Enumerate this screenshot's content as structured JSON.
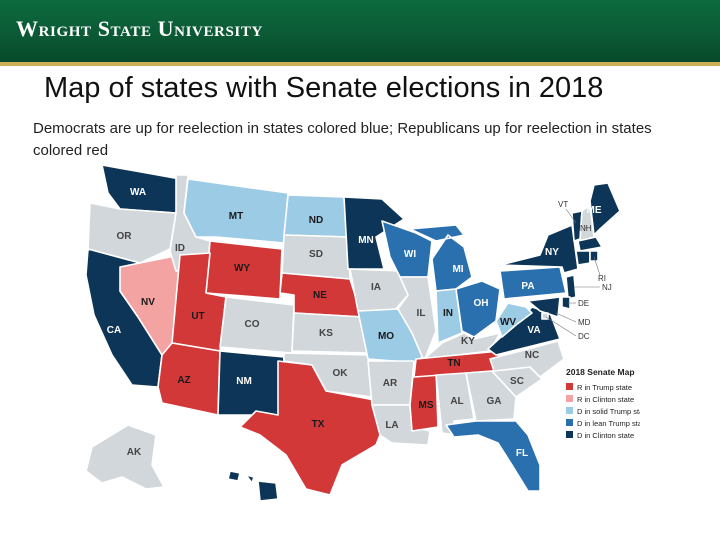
{
  "header": {
    "logo_text": "Wright State University"
  },
  "slide": {
    "title": "Map of states with Senate elections in 2018",
    "subtitle": "Democrats are up for reelection in states colored blue; Republicans up for reelection in states colored red"
  },
  "map": {
    "categories": {
      "none": {
        "color": "#d2d7db",
        "text": "#444444"
      },
      "r_trump": {
        "color": "#d33838",
        "text": "#1a1a1a"
      },
      "r_clinton": {
        "color": "#f4a3a3",
        "text": "#1a1a1a"
      },
      "d_solid": {
        "color": "#9ccbe6",
        "text": "#1a1a1a"
      },
      "d_lean": {
        "color": "#2a6fae",
        "text": "#ffffff"
      },
      "d_clinton": {
        "color": "#0d3557",
        "text": "#ffffff"
      }
    },
    "legend": {
      "title": "2018 Senate Map",
      "items": [
        {
          "cat": "r_trump",
          "label": "R in Trump state"
        },
        {
          "cat": "r_clinton",
          "label": "R in Clinton state"
        },
        {
          "cat": "d_solid",
          "label": "D in solid Trump state"
        },
        {
          "cat": "d_lean",
          "label": "D in lean Trump state"
        },
        {
          "cat": "d_clinton",
          "label": "D in Clinton state"
        }
      ]
    },
    "states": [
      {
        "code": "WA",
        "cat": "d_clinton"
      },
      {
        "code": "OR",
        "cat": "none"
      },
      {
        "code": "CA",
        "cat": "d_clinton"
      },
      {
        "code": "NV",
        "cat": "r_clinton"
      },
      {
        "code": "ID",
        "cat": "none"
      },
      {
        "code": "MT",
        "cat": "d_solid"
      },
      {
        "code": "WY",
        "cat": "r_trump"
      },
      {
        "code": "UT",
        "cat": "r_trump"
      },
      {
        "code": "AZ",
        "cat": "r_trump"
      },
      {
        "code": "CO",
        "cat": "none"
      },
      {
        "code": "NM",
        "cat": "d_clinton"
      },
      {
        "code": "ND",
        "cat": "d_solid"
      },
      {
        "code": "SD",
        "cat": "none"
      },
      {
        "code": "NE",
        "cat": "r_trump"
      },
      {
        "code": "KS",
        "cat": "none"
      },
      {
        "code": "OK",
        "cat": "none"
      },
      {
        "code": "TX",
        "cat": "r_trump"
      },
      {
        "code": "MN",
        "cat": "d_clinton"
      },
      {
        "code": "IA",
        "cat": "none"
      },
      {
        "code": "MO",
        "cat": "d_solid"
      },
      {
        "code": "AR",
        "cat": "none"
      },
      {
        "code": "LA",
        "cat": "none"
      },
      {
        "code": "WI",
        "cat": "d_lean"
      },
      {
        "code": "IL",
        "cat": "none"
      },
      {
        "code": "MS",
        "cat": "r_trump"
      },
      {
        "code": "MI",
        "cat": "d_lean"
      },
      {
        "code": "IN",
        "cat": "d_solid"
      },
      {
        "code": "OH",
        "cat": "d_lean"
      },
      {
        "code": "KY",
        "cat": "none"
      },
      {
        "code": "TN",
        "cat": "r_trump"
      },
      {
        "code": "AL",
        "cat": "none"
      },
      {
        "code": "GA",
        "cat": "none"
      },
      {
        "code": "FL",
        "cat": "d_lean"
      },
      {
        "code": "SC",
        "cat": "none"
      },
      {
        "code": "NC",
        "cat": "none"
      },
      {
        "code": "VA",
        "cat": "d_clinton"
      },
      {
        "code": "WV",
        "cat": "d_solid"
      },
      {
        "code": "PA",
        "cat": "d_lean"
      },
      {
        "code": "NY",
        "cat": "d_clinton"
      },
      {
        "code": "VT",
        "cat": "d_clinton"
      },
      {
        "code": "NH",
        "cat": "none"
      },
      {
        "code": "ME",
        "cat": "d_clinton"
      },
      {
        "code": "MA",
        "cat": "d_clinton"
      },
      {
        "code": "RI",
        "cat": "d_clinton"
      },
      {
        "code": "CT",
        "cat": "d_clinton"
      },
      {
        "code": "NJ",
        "cat": "d_clinton"
      },
      {
        "code": "DE",
        "cat": "d_clinton"
      },
      {
        "code": "MD",
        "cat": "d_clinton"
      },
      {
        "code": "DC",
        "cat": "none"
      },
      {
        "code": "AK",
        "cat": "none"
      },
      {
        "code": "HI",
        "cat": "d_clinton"
      }
    ]
  }
}
